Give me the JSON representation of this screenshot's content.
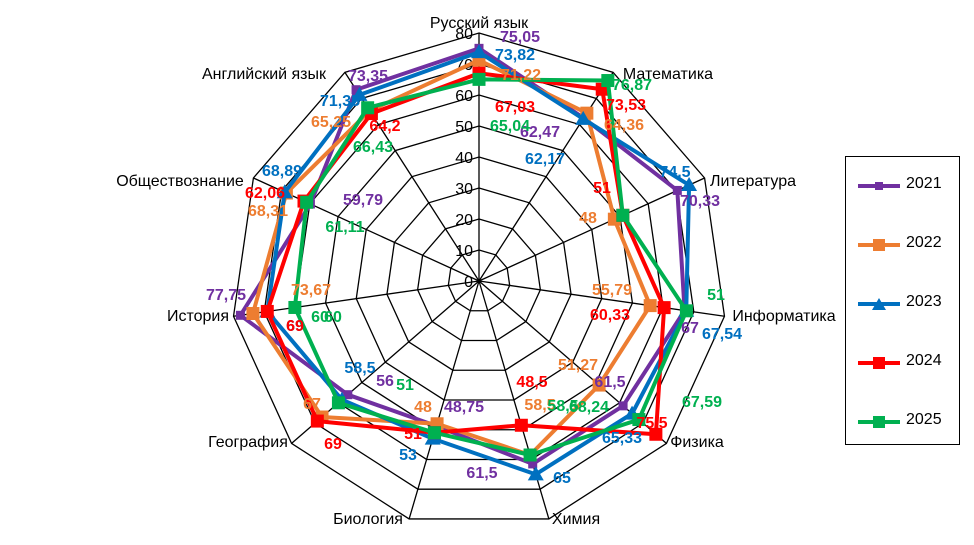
{
  "chart_data": {
    "type": "radar",
    "categories": [
      "Русский язык",
      "Математика",
      "Литература",
      "Информатика",
      "Физика",
      "Химия",
      "Биология",
      "География",
      "История",
      "Обществознание",
      "Английский язык"
    ],
    "ylim": [
      0,
      80
    ],
    "ticks": [
      "0",
      "10",
      "20",
      "30",
      "40",
      "50",
      "60",
      "70",
      "80"
    ],
    "legend_position": "right",
    "series": [
      {
        "name": "2021",
        "color": "#7030A0",
        "marker": "square-small",
        "values": [
          75.05,
          62.47,
          70.33,
          67,
          61.5,
          61.5,
          48.75,
          56,
          77.75,
          59.79,
          73.35
        ],
        "labels": [
          "75,05",
          "62,47",
          "70,33",
          "67",
          "61,5",
          "61,5",
          "48,75",
          "56",
          "77,75",
          "59,79",
          "73,35"
        ]
      },
      {
        "name": "2022",
        "color": "#ED7D31",
        "marker": "square",
        "values": [
          71.22,
          64.36,
          48,
          55.79,
          51.27,
          58.5,
          48,
          67,
          73.67,
          68.31,
          65.25
        ],
        "labels": [
          "71,22",
          "64,36",
          "48",
          "55,79",
          "51,27",
          "58,5",
          "48",
          "67",
          "73,67",
          "68,31",
          "65,25"
        ]
      },
      {
        "name": "2023",
        "color": "#0070C0",
        "marker": "triangle",
        "values": [
          73.82,
          62.17,
          74.5,
          67.54,
          65.33,
          65,
          53,
          58.5,
          69,
          68.89,
          71.35
        ],
        "labels": [
          "73,82",
          "62,17",
          "74,5",
          "67,54",
          "65,33",
          "65",
          "53",
          "58,5",
          "69",
          "68,89",
          "71,35"
        ]
      },
      {
        "name": "2024",
        "color": "#FF0000",
        "marker": "square",
        "values": [
          67.03,
          73.53,
          51,
          60.33,
          75.5,
          48.5,
          51,
          69,
          69,
          62.06,
          64.2
        ],
        "labels": [
          "67,03",
          "73,53",
          "51",
          "60,33",
          "75,5",
          "48,5",
          "51",
          "69",
          "69",
          "62,06",
          "64,2"
        ]
      },
      {
        "name": "2025",
        "color": "#00B050",
        "marker": "square",
        "values": [
          65.04,
          76.87,
          51,
          67.59,
          68.24,
          58.5,
          51,
          60,
          60,
          61.11,
          66.43
        ],
        "labels": [
          "65,04",
          "76,87",
          "51",
          "67,59",
          "68,24",
          "58,5",
          "51",
          "60",
          "60",
          "61,11",
          "66,43"
        ]
      }
    ]
  }
}
